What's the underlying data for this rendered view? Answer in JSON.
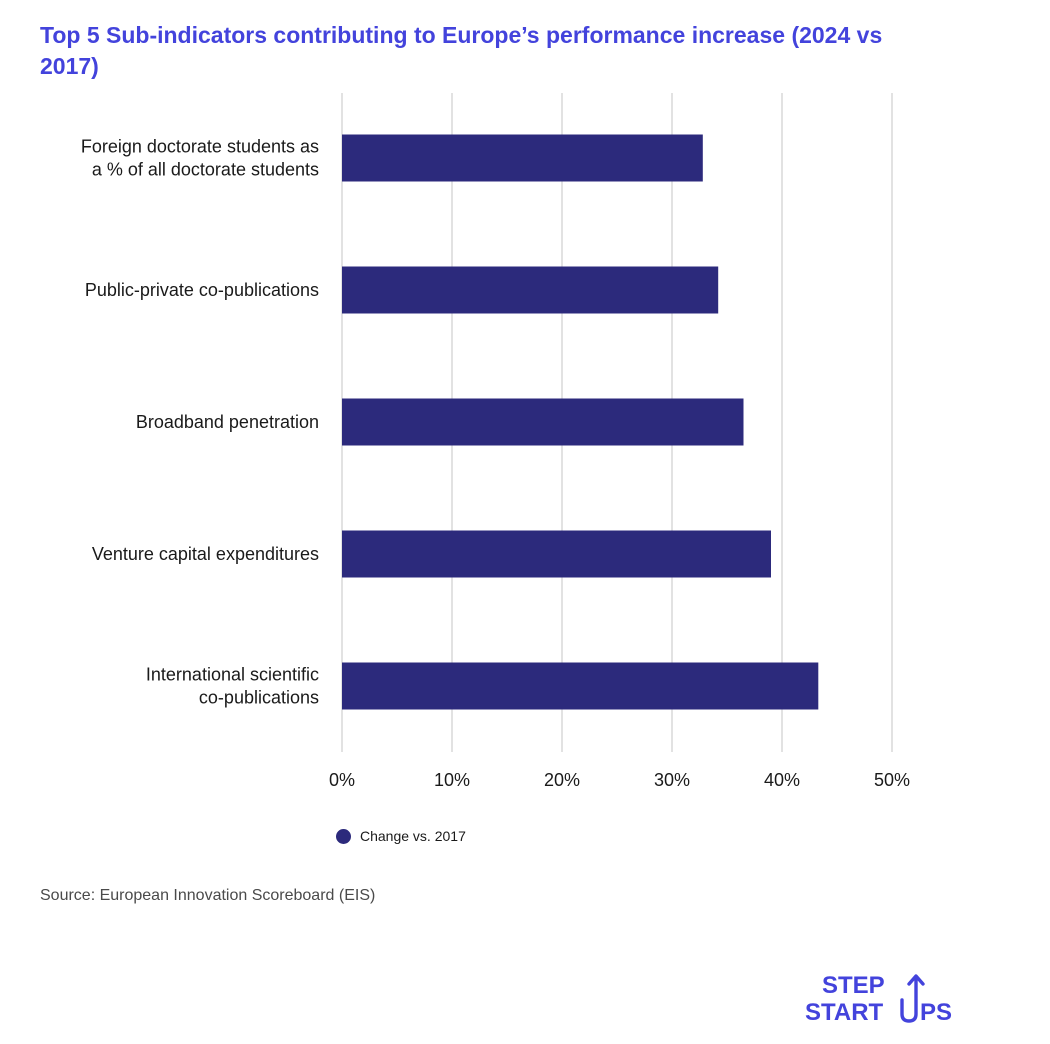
{
  "chart_data": {
    "type": "bar",
    "orientation": "horizontal",
    "title": "Top 5 Sub-indicators contributing to Europe’s performance increase (2024 vs 2017)",
    "categories": [
      "Foreign doctorate students as a % of all doctorate students",
      "Public-private co-publications",
      "Broadband penetration",
      "Venture capital expenditures",
      "International scientific co-publications"
    ],
    "category_lines": [
      [
        "Foreign doctorate students as",
        "a % of all doctorate students"
      ],
      [
        "Public-private co-publications"
      ],
      [
        "Broadband penetration"
      ],
      [
        "Venture capital expenditures"
      ],
      [
        "International scientific",
        "co-publications"
      ]
    ],
    "series": [
      {
        "name": "Change vs. 2017",
        "values": [
          32.8,
          34.2,
          36.5,
          39.0,
          43.3
        ],
        "color": "#2c2a7c"
      }
    ],
    "xlim": [
      0,
      50
    ],
    "xticks": [
      0,
      10,
      20,
      30,
      40,
      50
    ],
    "xtick_labels": [
      "0%",
      "10%",
      "20%",
      "30%",
      "40%",
      "50%"
    ],
    "grid": "vertical",
    "legend_position": "bottom"
  },
  "legend": {
    "label": "Change vs. 2017"
  },
  "source": "Source: European Innovation Scoreboard (EIS)",
  "logo": {
    "line1": "STEP",
    "line2_part1": "START",
    "line2_part2": "PS"
  },
  "colors": {
    "title": "#4343dc",
    "bar": "#2c2a7c",
    "grid": "#d9d9d9",
    "logo": "#4343dc"
  }
}
